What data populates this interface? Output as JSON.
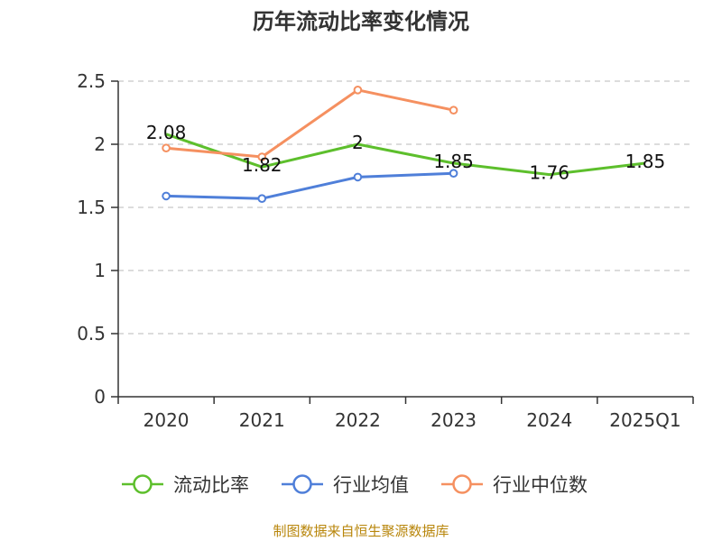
{
  "chart_data": {
    "type": "line",
    "title": "历年流动比率变化情况",
    "categories": [
      "2020",
      "2021",
      "2022",
      "2023",
      "2024",
      "2025Q1"
    ],
    "ylim": [
      0,
      2.5
    ],
    "yticks": [
      "0",
      "0.5",
      "1",
      "1.5",
      "2",
      "2.5"
    ],
    "grid": true,
    "legend_position": "bottom",
    "series": [
      {
        "name": "流动比率",
        "color": "#5dbf2c",
        "values": [
          2.08,
          1.82,
          2.0,
          1.85,
          1.76,
          1.85
        ],
        "labels": [
          "2.08",
          "1.82",
          "2",
          "1.85",
          "1.76",
          "1.85"
        ],
        "markers": false
      },
      {
        "name": "行业均值",
        "color": "#4f7fd9",
        "values": [
          1.59,
          1.57,
          1.74,
          1.77,
          null,
          null
        ],
        "markers": true
      },
      {
        "name": "行业中位数",
        "color": "#f59060",
        "values": [
          1.97,
          1.9,
          2.43,
          2.27,
          null,
          null
        ],
        "markers": true
      }
    ]
  },
  "footer": {
    "source": "制图数据来自恒生聚源数据库"
  }
}
